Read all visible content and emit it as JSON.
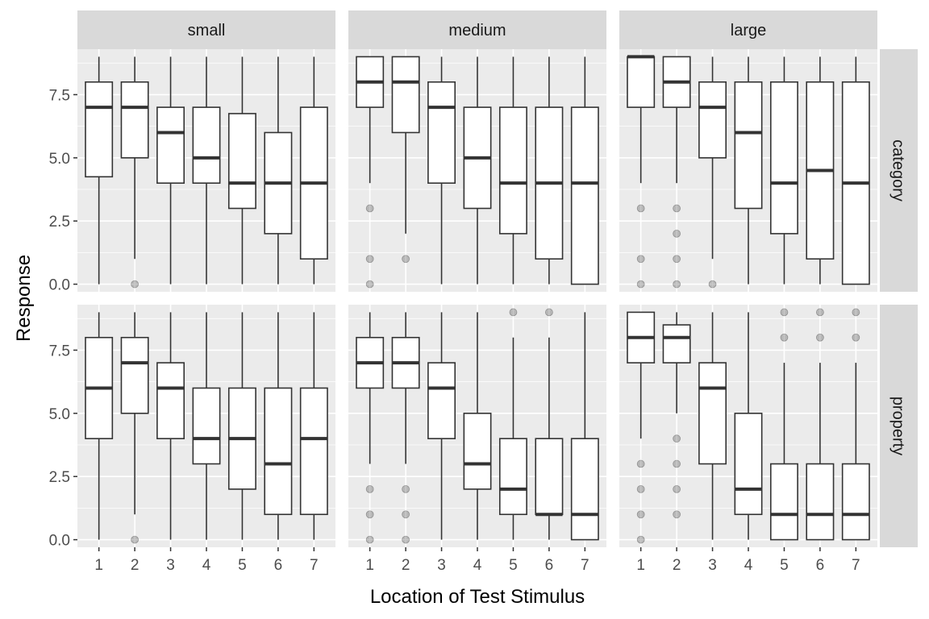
{
  "chart_data": {
    "type": "boxplot",
    "xlabel": "Location of Test Stimulus",
    "ylabel": "Response",
    "x_categories": [
      "1",
      "2",
      "3",
      "4",
      "5",
      "6",
      "7"
    ],
    "y_ticks": [
      "0.0",
      "2.5",
      "5.0",
      "7.5"
    ],
    "y_tick_values": [
      0,
      2.5,
      5,
      7.5
    ],
    "ylim": [
      -0.3,
      9.3
    ],
    "facet_columns": [
      "small",
      "medium",
      "large"
    ],
    "facet_rows": [
      "category",
      "property"
    ],
    "panels": [
      {
        "col": "small",
        "row": "category",
        "boxes": [
          {
            "x": 1,
            "min": 0,
            "q1": 4.25,
            "median": 7,
            "q3": 8,
            "max": 9,
            "outliers": []
          },
          {
            "x": 2,
            "min": 1,
            "q1": 5,
            "median": 7,
            "q3": 8,
            "max": 9,
            "outliers": [
              0
            ]
          },
          {
            "x": 3,
            "min": 0,
            "q1": 4,
            "median": 6,
            "q3": 7,
            "max": 9,
            "outliers": []
          },
          {
            "x": 4,
            "min": 0,
            "q1": 4,
            "median": 5,
            "q3": 7,
            "max": 9,
            "outliers": []
          },
          {
            "x": 5,
            "min": 0,
            "q1": 3,
            "median": 4,
            "q3": 6.75,
            "max": 9,
            "outliers": []
          },
          {
            "x": 6,
            "min": 0,
            "q1": 2,
            "median": 4,
            "q3": 6,
            "max": 9,
            "outliers": []
          },
          {
            "x": 7,
            "min": 0,
            "q1": 1,
            "median": 4,
            "q3": 7,
            "max": 9,
            "outliers": []
          }
        ]
      },
      {
        "col": "medium",
        "row": "category",
        "boxes": [
          {
            "x": 1,
            "min": 4,
            "q1": 7,
            "median": 8,
            "q3": 9,
            "max": 9,
            "outliers": [
              3,
              1,
              0
            ]
          },
          {
            "x": 2,
            "min": 2,
            "q1": 6,
            "median": 8,
            "q3": 9,
            "max": 9,
            "outliers": [
              1
            ]
          },
          {
            "x": 3,
            "min": 0,
            "q1": 4,
            "median": 7,
            "q3": 8,
            "max": 9,
            "outliers": []
          },
          {
            "x": 4,
            "min": 0,
            "q1": 3,
            "median": 5,
            "q3": 7,
            "max": 9,
            "outliers": []
          },
          {
            "x": 5,
            "min": 0,
            "q1": 2,
            "median": 4,
            "q3": 7,
            "max": 9,
            "outliers": []
          },
          {
            "x": 6,
            "min": 0,
            "q1": 1,
            "median": 4,
            "q3": 7,
            "max": 9,
            "outliers": []
          },
          {
            "x": 7,
            "min": 0,
            "q1": 0,
            "median": 4,
            "q3": 7,
            "max": 9,
            "outliers": []
          }
        ]
      },
      {
        "col": "large",
        "row": "category",
        "boxes": [
          {
            "x": 1,
            "min": 4,
            "q1": 7,
            "median": 9,
            "q3": 9,
            "max": 9,
            "outliers": [
              3,
              1,
              0
            ]
          },
          {
            "x": 2,
            "min": 4,
            "q1": 7,
            "median": 8,
            "q3": 9,
            "max": 9,
            "outliers": [
              3,
              2,
              1,
              0
            ]
          },
          {
            "x": 3,
            "min": 1,
            "q1": 5,
            "median": 7,
            "q3": 8,
            "max": 9,
            "outliers": [
              0
            ]
          },
          {
            "x": 4,
            "min": 0,
            "q1": 3,
            "median": 6,
            "q3": 8,
            "max": 9,
            "outliers": []
          },
          {
            "x": 5,
            "min": 0,
            "q1": 2,
            "median": 4,
            "q3": 8,
            "max": 9,
            "outliers": []
          },
          {
            "x": 6,
            "min": 0,
            "q1": 1,
            "median": 4.5,
            "q3": 8,
            "max": 9,
            "outliers": []
          },
          {
            "x": 7,
            "min": 0,
            "q1": 0,
            "median": 4,
            "q3": 8,
            "max": 9,
            "outliers": []
          }
        ]
      },
      {
        "col": "small",
        "row": "property",
        "boxes": [
          {
            "x": 1,
            "min": 0,
            "q1": 4,
            "median": 6,
            "q3": 8,
            "max": 9,
            "outliers": []
          },
          {
            "x": 2,
            "min": 1,
            "q1": 5,
            "median": 7,
            "q3": 8,
            "max": 9,
            "outliers": [
              0
            ]
          },
          {
            "x": 3,
            "min": 0,
            "q1": 4,
            "median": 6,
            "q3": 7,
            "max": 9,
            "outliers": []
          },
          {
            "x": 4,
            "min": 0,
            "q1": 3,
            "median": 4,
            "q3": 6,
            "max": 9,
            "outliers": []
          },
          {
            "x": 5,
            "min": 0,
            "q1": 2,
            "median": 4,
            "q3": 6,
            "max": 9,
            "outliers": []
          },
          {
            "x": 6,
            "min": 0,
            "q1": 1,
            "median": 3,
            "q3": 6,
            "max": 9,
            "outliers": []
          },
          {
            "x": 7,
            "min": 0,
            "q1": 1,
            "median": 4,
            "q3": 6,
            "max": 9,
            "outliers": []
          }
        ]
      },
      {
        "col": "medium",
        "row": "property",
        "boxes": [
          {
            "x": 1,
            "min": 3,
            "q1": 6,
            "median": 7,
            "q3": 8,
            "max": 9,
            "outliers": [
              2,
              1,
              0
            ]
          },
          {
            "x": 2,
            "min": 3,
            "q1": 6,
            "median": 7,
            "q3": 8,
            "max": 9,
            "outliers": [
              2,
              1,
              0
            ]
          },
          {
            "x": 3,
            "min": 0,
            "q1": 4,
            "median": 6,
            "q3": 7,
            "max": 9,
            "outliers": []
          },
          {
            "x": 4,
            "min": 0,
            "q1": 2,
            "median": 3,
            "q3": 5,
            "max": 9,
            "outliers": []
          },
          {
            "x": 5,
            "min": 0,
            "q1": 1,
            "median": 2,
            "q3": 4,
            "max": 8,
            "outliers": [
              9
            ]
          },
          {
            "x": 6,
            "min": 0,
            "q1": 1,
            "median": 1,
            "q3": 4,
            "max": 8,
            "outliers": [
              9
            ]
          },
          {
            "x": 7,
            "min": 0,
            "q1": 0,
            "median": 1,
            "q3": 4,
            "max": 9,
            "outliers": []
          }
        ]
      },
      {
        "col": "large",
        "row": "property",
        "boxes": [
          {
            "x": 1,
            "min": 4,
            "q1": 7,
            "median": 8,
            "q3": 9,
            "max": 9,
            "outliers": [
              3,
              2,
              1,
              0
            ]
          },
          {
            "x": 2,
            "min": 5,
            "q1": 7,
            "median": 8,
            "q3": 8.5,
            "max": 9,
            "outliers": [
              4,
              3,
              2,
              1
            ]
          },
          {
            "x": 3,
            "min": 0,
            "q1": 3,
            "median": 6,
            "q3": 7,
            "max": 9,
            "outliers": []
          },
          {
            "x": 4,
            "min": 0,
            "q1": 1,
            "median": 2,
            "q3": 5,
            "max": 9,
            "outliers": []
          },
          {
            "x": 5,
            "min": 0,
            "q1": 0,
            "median": 1,
            "q3": 3,
            "max": 7,
            "outliers": [
              9,
              8
            ]
          },
          {
            "x": 6,
            "min": 0,
            "q1": 0,
            "median": 1,
            "q3": 3,
            "max": 7,
            "outliers": [
              9,
              8
            ]
          },
          {
            "x": 7,
            "min": 0,
            "q1": 0,
            "median": 1,
            "q3": 3,
            "max": 7,
            "outliers": [
              9,
              8
            ]
          }
        ]
      }
    ]
  }
}
